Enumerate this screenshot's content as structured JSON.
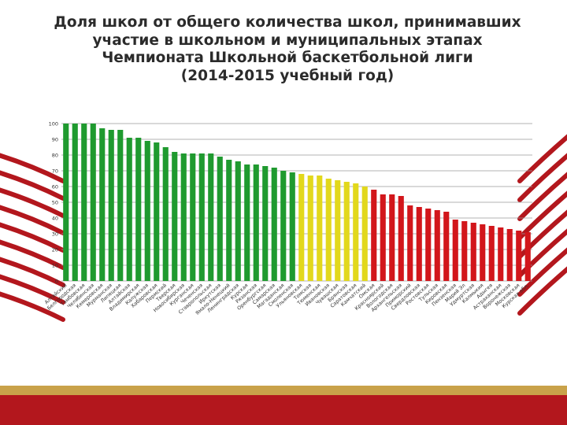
{
  "title_lines": [
    "Доля школ от общего количества школ,  принимавших",
    "участие в школьном и муниципальных этапах",
    "Чемпионата Школьной баскетбольной лиги",
    "(2014-2015 учебный год)"
  ],
  "colors": {
    "green": "#1f9a2f",
    "yellow": "#e2d81c",
    "red": "#d2161b",
    "deco_red": "#b3171d",
    "footer_gold": "#c9a24a",
    "footer_red": "#b3171d"
  },
  "chart_data": {
    "type": "bar",
    "ylim": [
      0,
      100
    ],
    "yticks": [
      0,
      10,
      20,
      30,
      40,
      50,
      60,
      70,
      80,
      90,
      100
    ],
    "grid": true,
    "categories": [
      "Алтайский",
      "Белгородская",
      "Тамбовская",
      "Челябинская",
      "Кемеровская",
      "Мурманская",
      "Липецкая",
      "Алтайская",
      "Владимирская",
      "Калужская",
      "Хабаровская",
      "Пермский",
      "Тверская",
      "Новосибирская",
      "Курганская",
      "Чеченская",
      "Ставропольская",
      "Иркутская",
      "Ямало-Ненецкий",
      "Ленинградская",
      "Курская",
      "Рязанская",
      "Оренбургская",
      "Самарская",
      "Магаданская",
      "Смоленская",
      "Ульяновская",
      "Томская",
      "Тюменская",
      "Ивановская",
      "Чувашская",
      "Брянская",
      "Саратовская",
      "Камчатский",
      "Омская",
      "Красноярский",
      "Вологодская",
      "Архангельская",
      "Приморский",
      "Свердловская",
      "Ростовская",
      "Тульская",
      "Кировская",
      "Пензенская",
      "Марий Эл",
      "Удмуртская",
      "Калмыкия",
      "Адыгея",
      "Астраханская",
      "Воронежская",
      "Московская",
      "Курская обл."
    ],
    "values": [
      100,
      100,
      100,
      100,
      97,
      96,
      96,
      91,
      91,
      89,
      88,
      85,
      82,
      81,
      81,
      81,
      81,
      79,
      77,
      76,
      74,
      74,
      73,
      72,
      70,
      69,
      68,
      67,
      67,
      65,
      64,
      63,
      62,
      60,
      58,
      55,
      55,
      54,
      48,
      47,
      46,
      45,
      44,
      39,
      38,
      37,
      36,
      35,
      34,
      33,
      32,
      31
    ],
    "bar_color_groups": [
      {
        "color": "green",
        "from": 0,
        "to": 26
      },
      {
        "color": "yellow",
        "from": 26,
        "to": 34
      },
      {
        "color": "red",
        "from": 34,
        "to": 52
      }
    ]
  }
}
